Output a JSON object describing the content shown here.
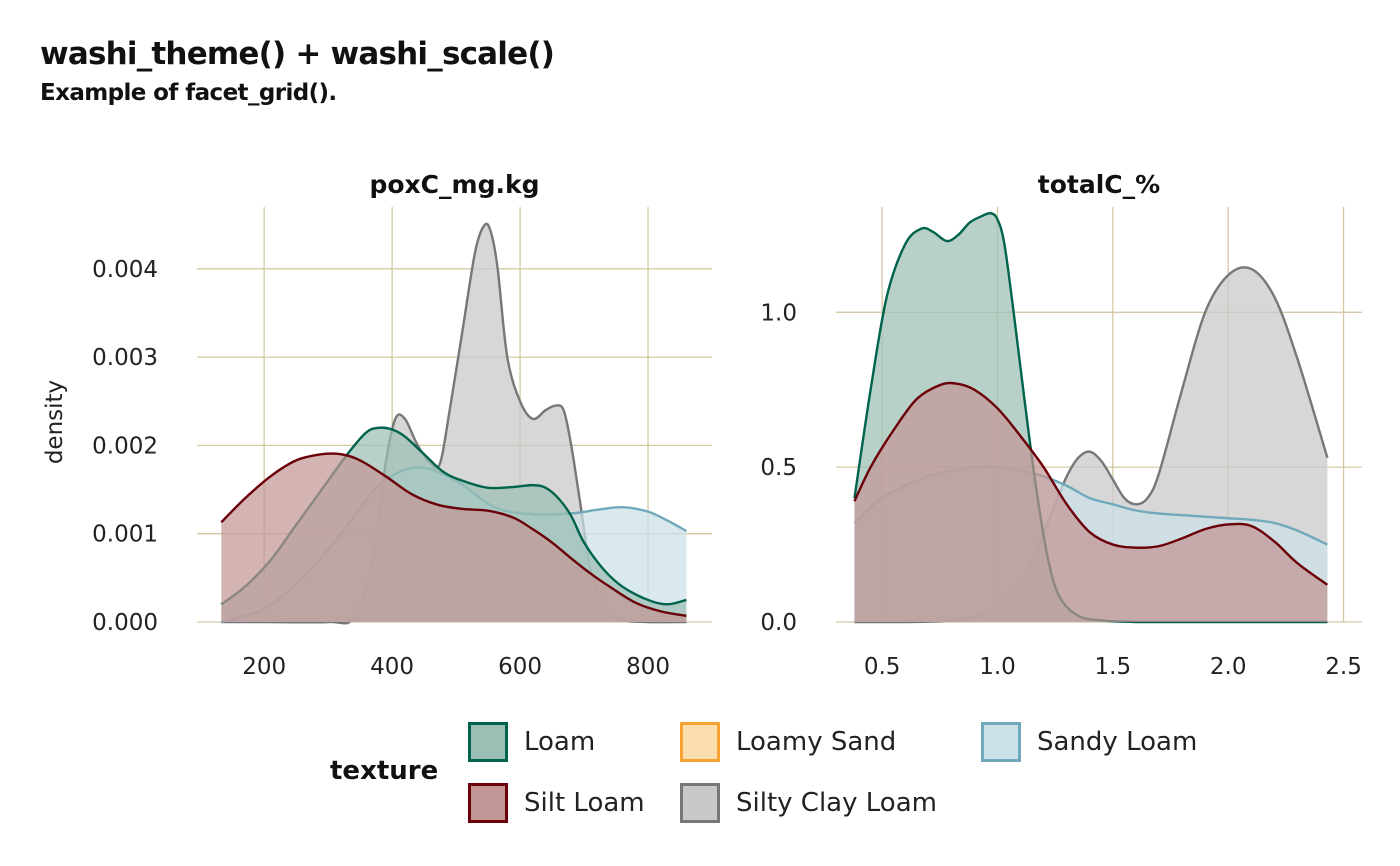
{
  "title": "washi_theme() + washi_scale()",
  "subtitle": "Example of facet_grid().",
  "colors": {
    "grid": "#d4c9a3",
    "Loam": "#00634c",
    "Loamy Sand": "#f6a331",
    "Sandy Loam": "#70a9bb",
    "Silt Loam": "#6b0008",
    "Silty Clay Loam": "#777777"
  },
  "legend": {
    "title": "texture",
    "items": [
      {
        "label": "Loam",
        "fill": "#9bbfb4",
        "stroke": "#00634c"
      },
      {
        "label": "Loamy Sand",
        "fill": "#fbdeae",
        "stroke": "#f6a331"
      },
      {
        "label": "Sandy Loam",
        "fill": "#cbe1e7",
        "stroke": "#70a9bb"
      },
      {
        "label": "Silt Loam",
        "fill": "#c39696",
        "stroke": "#6b0008"
      },
      {
        "label": "Silty Clay Loam",
        "fill": "#c9c7c8",
        "stroke": "#777777"
      }
    ]
  },
  "chart_data": {
    "type": "area",
    "ylabel": "density",
    "panels": [
      {
        "strip": "poxC_mg.kg",
        "xlim": [
          95,
          900
        ],
        "ylim": [
          0,
          0.0047
        ],
        "xticks": [
          200,
          400,
          600,
          800
        ],
        "xtick_labels": [
          "200",
          "400",
          "600",
          "800"
        ],
        "yticks": [
          0,
          0.001,
          0.002,
          0.003,
          0.004
        ],
        "ytick_labels": [
          "0.000",
          "0.001",
          "0.002",
          "0.003",
          "0.004"
        ],
        "series": [
          {
            "name": "Silty Clay Loam",
            "fill": "#c9c7c8",
            "stroke": "#777777",
            "x": [
              133,
              200,
              300,
              340,
              370,
              390,
              405,
              420,
              440,
              460,
              475,
              490,
              510,
              530,
              545,
              555,
              565,
              580,
              600,
              620,
              640,
              655,
              668,
              680,
              695,
              710,
              730,
              760,
              800,
              860
            ],
            "y": [
              0,
              0,
              0,
              5e-05,
              0.0007,
              0.0018,
              0.0023,
              0.0023,
              0.002,
              0.0018,
              0.0018,
              0.0024,
              0.0033,
              0.0042,
              0.0045,
              0.0044,
              0.004,
              0.003,
              0.0025,
              0.0023,
              0.0024,
              0.00245,
              0.0024,
              0.002,
              0.0013,
              0.0006,
              0.0002,
              3e-05,
              0,
              0
            ]
          },
          {
            "name": "Sandy Loam",
            "fill": "#cbe1e7",
            "stroke": "#70a9bb",
            "x": [
              133,
              200,
              260,
              320,
              380,
              440,
              500,
              560,
              620,
              680,
              720,
              760,
              800,
              830,
              860
            ],
            "y": [
              0,
              0.00015,
              0.0005,
              0.001,
              0.00155,
              0.00175,
              0.0016,
              0.0013,
              0.00122,
              0.00123,
              0.00127,
              0.0013,
              0.00125,
              0.00115,
              0.00103
            ]
          },
          {
            "name": "Loam",
            "fill": "#9bbfb4",
            "stroke": "#00634c",
            "x": [
              133,
              170,
              210,
              250,
              290,
              330,
              360,
              380,
              400,
              420,
              450,
              480,
              510,
              550,
              590,
              620,
              640,
              660,
              680,
              700,
              730,
              760,
              800,
              830,
              860
            ],
            "y": [
              0.0002,
              0.0004,
              0.0007,
              0.0011,
              0.0015,
              0.0019,
              0.00215,
              0.0022,
              0.00218,
              0.0021,
              0.0019,
              0.0017,
              0.0016,
              0.00152,
              0.00153,
              0.00155,
              0.00152,
              0.0014,
              0.0012,
              0.0009,
              0.0006,
              0.0004,
              0.00025,
              0.0002,
              0.00025
            ]
          },
          {
            "name": "Silt Loam",
            "fill": "#c39696",
            "stroke": "#6b0008",
            "x": [
              133,
              170,
              210,
              250,
              290,
              320,
              350,
              390,
              430,
              470,
              510,
              550,
              590,
              620,
              650,
              680,
              710,
              740,
              780,
              820,
              860
            ],
            "y": [
              0.00113,
              0.0014,
              0.00165,
              0.00183,
              0.0019,
              0.0019,
              0.00183,
              0.00165,
              0.00145,
              0.00133,
              0.00128,
              0.00126,
              0.00118,
              0.00105,
              0.0009,
              0.00072,
              0.00055,
              0.0004,
              0.00022,
              0.00012,
              7e-05
            ]
          }
        ]
      },
      {
        "strip": "totalC_%",
        "xlim": [
          0.3,
          2.58
        ],
        "ylim": [
          0,
          1.34
        ],
        "xticks": [
          0.5,
          1.0,
          1.5,
          2.0,
          2.5
        ],
        "xtick_labels": [
          "0.5",
          "1.0",
          "1.5",
          "2.0",
          "2.5"
        ],
        "yticks": [
          0,
          0.5,
          1.0
        ],
        "ytick_labels": [
          "0.0",
          "0.5",
          "1.0"
        ],
        "series": [
          {
            "name": "Silty Clay Loam",
            "fill": "#c9c7c8",
            "stroke": "#777777",
            "x": [
              0.38,
              0.6,
              0.8,
              0.95,
              1.05,
              1.15,
              1.25,
              1.3,
              1.35,
              1.4,
              1.45,
              1.5,
              1.55,
              1.6,
              1.65,
              1.7,
              1.8,
              1.9,
              2.0,
              2.1,
              2.2,
              2.3,
              2.43
            ],
            "y": [
              0,
              0,
              0.005,
              0.03,
              0.08,
              0.2,
              0.38,
              0.47,
              0.53,
              0.55,
              0.52,
              0.46,
              0.4,
              0.38,
              0.4,
              0.48,
              0.75,
              1.0,
              1.12,
              1.14,
              1.05,
              0.85,
              0.53
            ]
          },
          {
            "name": "Sandy Loam",
            "fill": "#cbe1e7",
            "stroke": "#70a9bb",
            "x": [
              0.38,
              0.5,
              0.7,
              0.9,
              1.0,
              1.1,
              1.2,
              1.3,
              1.4,
              1.5,
              1.6,
              1.7,
              1.8,
              1.9,
              2.0,
              2.1,
              2.2,
              2.3,
              2.43
            ],
            "y": [
              0.32,
              0.4,
              0.47,
              0.5,
              0.5,
              0.49,
              0.47,
              0.44,
              0.4,
              0.38,
              0.36,
              0.35,
              0.345,
              0.34,
              0.335,
              0.33,
              0.32,
              0.295,
              0.25
            ]
          },
          {
            "name": "Loam",
            "fill": "#9bbfb4",
            "stroke": "#00634c",
            "x": [
              0.38,
              0.45,
              0.52,
              0.6,
              0.67,
              0.72,
              0.78,
              0.83,
              0.88,
              0.93,
              0.97,
              1.0,
              1.03,
              1.07,
              1.12,
              1.17,
              1.22,
              1.27,
              1.35,
              1.45,
              1.6,
              1.8,
              2.0,
              2.43
            ],
            "y": [
              0.4,
              0.75,
              1.05,
              1.22,
              1.27,
              1.26,
              1.23,
              1.25,
              1.29,
              1.31,
              1.32,
              1.3,
              1.22,
              1.0,
              0.7,
              0.42,
              0.2,
              0.08,
              0.02,
              0.005,
              0,
              0,
              0,
              0
            ]
          },
          {
            "name": "Silt Loam",
            "fill": "#c39696",
            "stroke": "#6b0008",
            "x": [
              0.38,
              0.45,
              0.55,
              0.65,
              0.75,
              0.82,
              0.9,
              1.0,
              1.1,
              1.2,
              1.3,
              1.4,
              1.5,
              1.6,
              1.7,
              1.8,
              1.9,
              2.0,
              2.1,
              2.2,
              2.3,
              2.43
            ],
            "y": [
              0.39,
              0.5,
              0.62,
              0.72,
              0.765,
              0.77,
              0.75,
              0.69,
              0.6,
              0.5,
              0.38,
              0.29,
              0.25,
              0.24,
              0.245,
              0.27,
              0.3,
              0.315,
              0.31,
              0.26,
              0.19,
              0.12
            ]
          }
        ]
      }
    ]
  }
}
